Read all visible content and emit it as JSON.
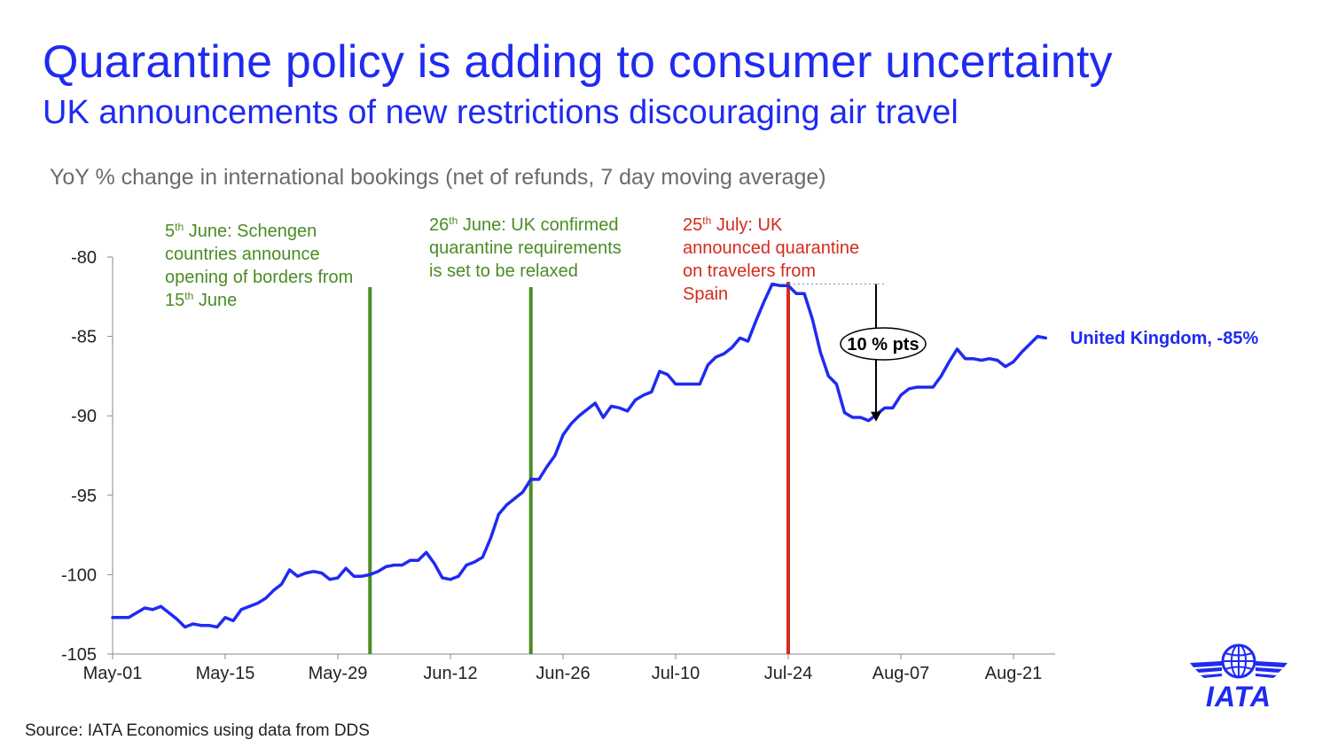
{
  "header": {
    "title": "Quarantine policy is adding to consumer uncertainty",
    "subtitle": "UK announcements of new restrictions discouraging air travel"
  },
  "caption": "YoY % change in international bookings (net of refunds, 7 day moving average)",
  "source": "Source: IATA Economics using data from DDS",
  "logo": {
    "text": "IATA",
    "icon": "iata-globe-wings-icon"
  },
  "colors": {
    "accent": "#1f2bf0",
    "series": "#1f2bf0",
    "green_event": "#4a8c24",
    "red_event": "#d42b1e",
    "axis": "#888888"
  },
  "chart_data": {
    "type": "line",
    "title": "",
    "xlabel": "",
    "ylabel": "",
    "ylim": [
      -105,
      -80
    ],
    "y_ticks": [
      "-80",
      "-85",
      "-90",
      "-95",
      "-100",
      "-105"
    ],
    "x_ticks": [
      "May-01",
      "May-15",
      "May-29",
      "Jun-12",
      "Jun-26",
      "Jul-10",
      "Jul-24",
      "Aug-07",
      "Aug-21"
    ],
    "xlim": [
      "2020-05-01",
      "2020-08-24"
    ],
    "grid": false,
    "series": [
      {
        "name": "United Kingdom, -85%",
        "label": "United Kingdom, -85%",
        "points": [
          [
            "2020-05-01",
            -102.7
          ],
          [
            "2020-05-02",
            -102.7
          ],
          [
            "2020-05-03",
            -102.7
          ],
          [
            "2020-05-04",
            -102.4
          ],
          [
            "2020-05-05",
            -102.1
          ],
          [
            "2020-05-06",
            -102.2
          ],
          [
            "2020-05-07",
            -102.0
          ],
          [
            "2020-05-08",
            -102.4
          ],
          [
            "2020-05-09",
            -102.8
          ],
          [
            "2020-05-10",
            -103.3
          ],
          [
            "2020-05-11",
            -103.1
          ],
          [
            "2020-05-12",
            -103.2
          ],
          [
            "2020-05-13",
            -103.2
          ],
          [
            "2020-05-14",
            -103.3
          ],
          [
            "2020-05-15",
            -102.7
          ],
          [
            "2020-05-16",
            -102.9
          ],
          [
            "2020-05-17",
            -102.2
          ],
          [
            "2020-05-18",
            -102.0
          ],
          [
            "2020-05-19",
            -101.8
          ],
          [
            "2020-05-20",
            -101.5
          ],
          [
            "2020-05-21",
            -101.0
          ],
          [
            "2020-05-22",
            -100.6
          ],
          [
            "2020-05-23",
            -99.7
          ],
          [
            "2020-05-24",
            -100.1
          ],
          [
            "2020-05-25",
            -99.9
          ],
          [
            "2020-05-26",
            -99.8
          ],
          [
            "2020-05-27",
            -99.9
          ],
          [
            "2020-05-28",
            -100.3
          ],
          [
            "2020-05-29",
            -100.2
          ],
          [
            "2020-05-30",
            -99.6
          ],
          [
            "2020-05-31",
            -100.1
          ],
          [
            "2020-06-01",
            -100.1
          ],
          [
            "2020-06-02",
            -100.0
          ],
          [
            "2020-06-03",
            -99.8
          ],
          [
            "2020-06-04",
            -99.5
          ],
          [
            "2020-06-05",
            -99.4
          ],
          [
            "2020-06-06",
            -99.4
          ],
          [
            "2020-06-07",
            -99.1
          ],
          [
            "2020-06-08",
            -99.1
          ],
          [
            "2020-06-09",
            -98.6
          ],
          [
            "2020-06-10",
            -99.3
          ],
          [
            "2020-06-11",
            -100.2
          ],
          [
            "2020-06-12",
            -100.3
          ],
          [
            "2020-06-13",
            -100.1
          ],
          [
            "2020-06-14",
            -99.4
          ],
          [
            "2020-06-15",
            -99.2
          ],
          [
            "2020-06-16",
            -98.9
          ],
          [
            "2020-06-17",
            -97.7
          ],
          [
            "2020-06-18",
            -96.2
          ],
          [
            "2020-06-19",
            -95.6
          ],
          [
            "2020-06-20",
            -95.2
          ],
          [
            "2020-06-21",
            -94.8
          ],
          [
            "2020-06-22",
            -94.0
          ],
          [
            "2020-06-23",
            -94.0
          ],
          [
            "2020-06-24",
            -93.2
          ],
          [
            "2020-06-25",
            -92.5
          ],
          [
            "2020-06-26",
            -91.2
          ],
          [
            "2020-06-27",
            -90.5
          ],
          [
            "2020-06-28",
            -90.0
          ],
          [
            "2020-06-29",
            -89.6
          ],
          [
            "2020-06-30",
            -89.2
          ],
          [
            "2020-07-01",
            -90.1
          ],
          [
            "2020-07-02",
            -89.4
          ],
          [
            "2020-07-03",
            -89.5
          ],
          [
            "2020-07-04",
            -89.7
          ],
          [
            "2020-07-05",
            -89.0
          ],
          [
            "2020-07-06",
            -88.7
          ],
          [
            "2020-07-07",
            -88.5
          ],
          [
            "2020-07-08",
            -87.2
          ],
          [
            "2020-07-09",
            -87.4
          ],
          [
            "2020-07-10",
            -88.0
          ],
          [
            "2020-07-11",
            -88.0
          ],
          [
            "2020-07-12",
            -88.0
          ],
          [
            "2020-07-13",
            -88.0
          ],
          [
            "2020-07-14",
            -86.8
          ],
          [
            "2020-07-15",
            -86.3
          ],
          [
            "2020-07-16",
            -86.1
          ],
          [
            "2020-07-17",
            -85.7
          ],
          [
            "2020-07-18",
            -85.1
          ],
          [
            "2020-07-19",
            -85.3
          ],
          [
            "2020-07-20",
            -84.0
          ],
          [
            "2020-07-21",
            -82.8
          ],
          [
            "2020-07-22",
            -81.7
          ],
          [
            "2020-07-23",
            -81.8
          ],
          [
            "2020-07-24",
            -81.8
          ],
          [
            "2020-07-25",
            -82.3
          ],
          [
            "2020-07-26",
            -82.3
          ],
          [
            "2020-07-27",
            -83.9
          ],
          [
            "2020-07-28",
            -86.0
          ],
          [
            "2020-07-29",
            -87.5
          ],
          [
            "2020-07-30",
            -88.0
          ],
          [
            "2020-07-31",
            -89.8
          ],
          [
            "2020-08-01",
            -90.1
          ],
          [
            "2020-08-02",
            -90.1
          ],
          [
            "2020-08-03",
            -90.3
          ],
          [
            "2020-08-04",
            -89.9
          ],
          [
            "2020-08-05",
            -89.5
          ],
          [
            "2020-08-06",
            -89.5
          ],
          [
            "2020-08-07",
            -88.7
          ],
          [
            "2020-08-08",
            -88.3
          ],
          [
            "2020-08-09",
            -88.2
          ],
          [
            "2020-08-10",
            -88.2
          ],
          [
            "2020-08-11",
            -88.2
          ],
          [
            "2020-08-12",
            -87.5
          ],
          [
            "2020-08-13",
            -86.6
          ],
          [
            "2020-08-14",
            -85.8
          ],
          [
            "2020-08-15",
            -86.4
          ],
          [
            "2020-08-16",
            -86.4
          ],
          [
            "2020-08-17",
            -86.5
          ],
          [
            "2020-08-18",
            -86.4
          ],
          [
            "2020-08-19",
            -86.5
          ],
          [
            "2020-08-20",
            -86.9
          ],
          [
            "2020-08-21",
            -86.6
          ],
          [
            "2020-08-22",
            -86.0
          ],
          [
            "2020-08-23",
            -85.5
          ],
          [
            "2020-08-24",
            -85.0
          ],
          [
            "2020-08-25",
            -85.1
          ]
        ]
      }
    ],
    "events": [
      {
        "date": "2020-06-02",
        "color": "green",
        "lines": [
          [
            {
              "t": "5"
            },
            {
              "t": "th",
              "sup": true
            },
            {
              "t": " June: Schengen"
            }
          ],
          [
            {
              "t": "countries announce"
            }
          ],
          [
            {
              "t": "opening of borders from"
            }
          ],
          [
            {
              "t": "15"
            },
            {
              "t": "th",
              "sup": true
            },
            {
              "t": " June"
            }
          ]
        ]
      },
      {
        "date": "2020-06-22",
        "color": "green",
        "lines": [
          [
            {
              "t": "26"
            },
            {
              "t": "th",
              "sup": true
            },
            {
              "t": " June: UK confirmed"
            }
          ],
          [
            {
              "t": "quarantine requirements"
            }
          ],
          [
            {
              "t": "is set to be relaxed"
            }
          ]
        ]
      },
      {
        "date": "2020-07-24",
        "color": "red",
        "lines": [
          [
            {
              "t": "25"
            },
            {
              "t": "th",
              "sup": true
            },
            {
              "t": " July: UK"
            }
          ],
          [
            {
              "t": "announced quarantine"
            }
          ],
          [
            {
              "t": "on travelers from"
            }
          ],
          [
            {
              "t": "Spain"
            }
          ]
        ]
      }
    ],
    "annotation": {
      "label": "10 % pts",
      "from": [
        "2020-07-23",
        -81.7
      ],
      "to": [
        "2020-08-03",
        -90.3
      ]
    }
  }
}
